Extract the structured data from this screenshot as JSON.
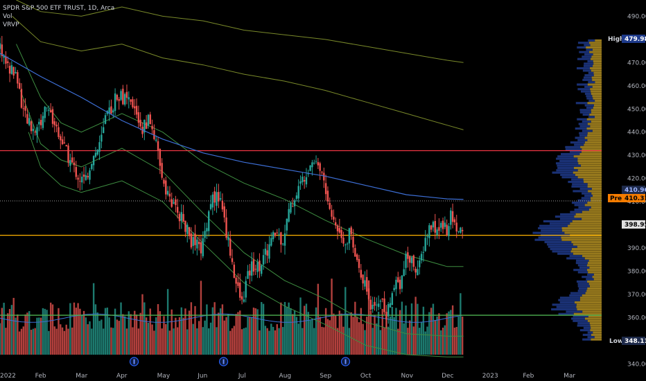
{
  "legend": {
    "symbol": "SPDR S&P 500 ETF TRUST, 1D, Arca",
    "vol": "Vol",
    "vrvp": "VRVP"
  },
  "tags": {
    "high": {
      "label": "High",
      "value": "479.98"
    },
    "prev": {
      "label": "Pre",
      "value": "410.31"
    },
    "ma_value": "410.96",
    "last": "398.95",
    "low": {
      "label": "Low",
      "value": "348.11"
    }
  },
  "colors": {
    "background": "#000000",
    "up": "#26a69a",
    "down": "#ef5350",
    "volume_up": "#1d7a6f",
    "volume_down": "#b2403d",
    "resistance_red": "#f23645",
    "support_yellow": "#ffb300",
    "support_green": "#4caf50",
    "ma_blue": "#3d6fd6",
    "band_olive": "#7a8a2a",
    "band_green": "#3e8e41",
    "profile_yellow": "#c9a227",
    "profile_blue": "#1e3a8a",
    "tag_high_bg": "#1e3a8a",
    "tag_prev_bg": "#f57c00",
    "tag_last_bg": "#e0e0e0",
    "tag_ma_bg": "#1e2a4a"
  },
  "event_marker_icon": "dividend-circle-icon",
  "chart_data": {
    "type": "candlestick",
    "title": "SPDR S&P 500 ETF TRUST, 1D, Arca",
    "y_axis": {
      "ticks": [
        490,
        480,
        470,
        460,
        450,
        440,
        430,
        420,
        410,
        400,
        390,
        380,
        370,
        360,
        350,
        340
      ],
      "ylim": [
        338,
        497
      ],
      "position": "right"
    },
    "x_axis": {
      "ticks": [
        {
          "label": "2022",
          "month": 0
        },
        {
          "label": "Feb",
          "month": 1
        },
        {
          "label": "Mar",
          "month": 2
        },
        {
          "label": "Apr",
          "month": 3
        },
        {
          "label": "May",
          "month": 4
        },
        {
          "label": "Jun",
          "month": 5
        },
        {
          "label": "Jul",
          "month": 6
        },
        {
          "label": "Aug",
          "month": 7
        },
        {
          "label": "Sep",
          "month": 8
        },
        {
          "label": "Oct",
          "month": 9
        },
        {
          "label": "Nov",
          "month": 10
        },
        {
          "label": "Dec",
          "month": 11
        },
        {
          "label": "2023",
          "month": 12
        },
        {
          "label": "Feb",
          "month": 13
        },
        {
          "label": "Mar",
          "month": 14
        }
      ],
      "xlim_months": [
        0,
        14.8
      ]
    },
    "horizontal_lines": [
      {
        "name": "resistance",
        "value": 432,
        "color": "#f23645"
      },
      {
        "name": "support-yellow",
        "value": 395.5,
        "color": "#ffb300"
      },
      {
        "name": "support-green",
        "value": 361,
        "color": "#4caf50"
      },
      {
        "name": "previous-close",
        "value": 410.31,
        "color": "#9e9e9e",
        "dashed": true
      }
    ],
    "price_path": [
      [
        0.0,
        477
      ],
      [
        0.2,
        468
      ],
      [
        0.4,
        465
      ],
      [
        0.6,
        447
      ],
      [
        0.8,
        441
      ],
      [
        1.0,
        444
      ],
      [
        1.15,
        452
      ],
      [
        1.3,
        445
      ],
      [
        1.45,
        440
      ],
      [
        1.6,
        432
      ],
      [
        1.8,
        425
      ],
      [
        1.95,
        420
      ],
      [
        2.1,
        419
      ],
      [
        2.25,
        428
      ],
      [
        2.45,
        434
      ],
      [
        2.6,
        445
      ],
      [
        2.75,
        451
      ],
      [
        2.9,
        457
      ],
      [
        3.0,
        455
      ],
      [
        3.2,
        452
      ],
      [
        3.35,
        448
      ],
      [
        3.5,
        441
      ],
      [
        3.65,
        446
      ],
      [
        3.8,
        438
      ],
      [
        3.95,
        423
      ],
      [
        4.1,
        415
      ],
      [
        4.25,
        408
      ],
      [
        4.4,
        405
      ],
      [
        4.55,
        400
      ],
      [
        4.7,
        393
      ],
      [
        4.85,
        391
      ],
      [
        4.95,
        389
      ],
      [
        5.05,
        398
      ],
      [
        5.2,
        412
      ],
      [
        5.35,
        412
      ],
      [
        5.45,
        410
      ],
      [
        5.55,
        398
      ],
      [
        5.65,
        390
      ],
      [
        5.8,
        375
      ],
      [
        5.95,
        366
      ],
      [
        6.05,
        375
      ],
      [
        6.2,
        383
      ],
      [
        6.35,
        382
      ],
      [
        6.5,
        386
      ],
      [
        6.65,
        392
      ],
      [
        6.8,
        397
      ],
      [
        6.95,
        393
      ],
      [
        7.1,
        405
      ],
      [
        7.25,
        412
      ],
      [
        7.4,
        418
      ],
      [
        7.55,
        424
      ],
      [
        7.7,
        429
      ],
      [
        7.8,
        427
      ],
      [
        7.95,
        421
      ],
      [
        8.05,
        410
      ],
      [
        8.2,
        402
      ],
      [
        8.35,
        397
      ],
      [
        8.5,
        393
      ],
      [
        8.6,
        397
      ],
      [
        8.7,
        388
      ],
      [
        8.85,
        382
      ],
      [
        9.0,
        373
      ],
      [
        9.1,
        366
      ],
      [
        9.2,
        362
      ],
      [
        9.35,
        370
      ],
      [
        9.5,
        360
      ],
      [
        9.6,
        366
      ],
      [
        9.7,
        376
      ],
      [
        9.85,
        375
      ],
      [
        10.0,
        386
      ],
      [
        10.15,
        384
      ],
      [
        10.3,
        380
      ],
      [
        10.45,
        393
      ],
      [
        10.6,
        400
      ],
      [
        10.75,
        397
      ],
      [
        10.9,
        401
      ],
      [
        11.0,
        398
      ],
      [
        11.1,
        404
      ],
      [
        11.2,
        400
      ],
      [
        11.3,
        397
      ],
      [
        11.4,
        399
      ]
    ],
    "moving_average": [
      [
        0.0,
        474
      ],
      [
        1.0,
        464
      ],
      [
        2.0,
        455
      ],
      [
        3.0,
        445
      ],
      [
        4.0,
        437
      ],
      [
        5.0,
        431
      ],
      [
        6.0,
        427
      ],
      [
        7.0,
        424
      ],
      [
        8.0,
        421
      ],
      [
        9.0,
        417
      ],
      [
        10.0,
        413
      ],
      [
        11.0,
        411.2
      ],
      [
        11.4,
        410.96
      ]
    ],
    "bands": [
      {
        "name": "band-1",
        "color": "#7a8a2a",
        "points": [
          [
            0.4,
            497
          ],
          [
            1.0,
            492
          ],
          [
            2.0,
            490
          ],
          [
            3.0,
            494
          ],
          [
            4.0,
            490
          ],
          [
            5.0,
            488
          ],
          [
            6.0,
            484
          ],
          [
            7.0,
            482
          ],
          [
            8.0,
            480
          ],
          [
            9.0,
            477
          ],
          [
            10.0,
            474
          ],
          [
            11.0,
            471
          ],
          [
            11.4,
            470
          ]
        ]
      },
      {
        "name": "band-2",
        "color": "#7a8a2a",
        "points": [
          [
            0.3,
            490
          ],
          [
            1.0,
            479
          ],
          [
            2.0,
            475
          ],
          [
            3.0,
            478
          ],
          [
            4.0,
            472
          ],
          [
            5.0,
            469
          ],
          [
            6.0,
            465
          ],
          [
            7.0,
            462
          ],
          [
            8.0,
            458
          ],
          [
            9.0,
            453
          ],
          [
            10.0,
            448
          ],
          [
            11.0,
            443
          ],
          [
            11.4,
            441
          ]
        ]
      },
      {
        "name": "band-3",
        "color": "#3e8e41",
        "points": [
          [
            0.4,
            478
          ],
          [
            1.0,
            455
          ],
          [
            1.5,
            444
          ],
          [
            2.0,
            440
          ],
          [
            3.0,
            448
          ],
          [
            4.0,
            440
          ],
          [
            5.0,
            427
          ],
          [
            6.0,
            418
          ],
          [
            7.0,
            411
          ],
          [
            8.0,
            402
          ],
          [
            9.0,
            394
          ],
          [
            10.0,
            387
          ],
          [
            11.0,
            382
          ],
          [
            11.4,
            382
          ]
        ]
      },
      {
        "name": "band-4",
        "color": "#3e8e41",
        "points": [
          [
            0.5,
            458
          ],
          [
            1.0,
            435
          ],
          [
            1.5,
            428
          ],
          [
            2.0,
            425
          ],
          [
            3.0,
            433
          ],
          [
            4.0,
            423
          ],
          [
            5.0,
            405
          ],
          [
            6.0,
            388
          ],
          [
            7.0,
            376
          ],
          [
            8.0,
            368
          ],
          [
            9.0,
            358
          ],
          [
            10.0,
            353
          ],
          [
            11.0,
            352
          ],
          [
            11.4,
            352
          ]
        ]
      },
      {
        "name": "band-5",
        "color": "#3e8e41",
        "points": [
          [
            0.7,
            440
          ],
          [
            1.0,
            425
          ],
          [
            1.5,
            417
          ],
          [
            2.0,
            414
          ],
          [
            3.0,
            419
          ],
          [
            4.0,
            410
          ],
          [
            5.0,
            392
          ],
          [
            6.0,
            375
          ],
          [
            7.0,
            365
          ],
          [
            8.0,
            357
          ],
          [
            9.0,
            348
          ],
          [
            10.0,
            344
          ],
          [
            11.0,
            343
          ],
          [
            11.4,
            343
          ]
        ]
      }
    ],
    "volume": {
      "average_line_color": "#3d6fd6",
      "max_height_fraction": 0.18
    },
    "volume_profile": {
      "price_range": [
        350,
        480
      ],
      "point_of_control": 395.5
    },
    "event_markers_months": [
      3.3,
      5.5,
      8.5
    ]
  }
}
